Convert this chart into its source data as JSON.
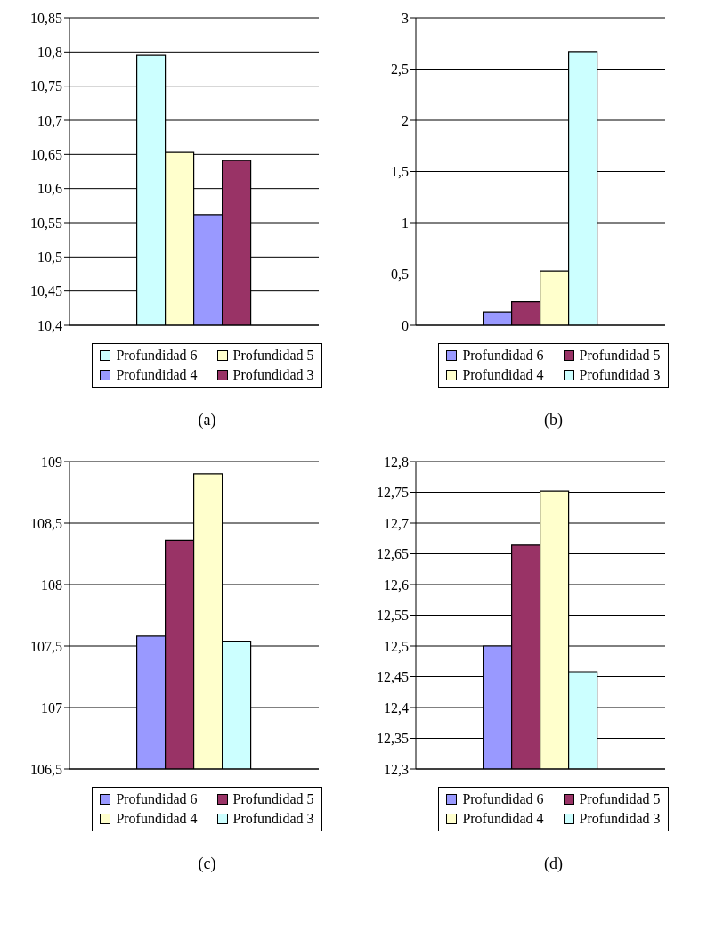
{
  "chart_data": [
    {
      "type": "bar",
      "categories": [
        null
      ],
      "series": [
        {
          "name": "Profundidad 6",
          "color": "#ccffff",
          "values": [
            10.795
          ]
        },
        {
          "name": "Profundidad 5",
          "color": "#ffffcc",
          "values": [
            10.653
          ]
        },
        {
          "name": "Profundidad 4",
          "color": "#9999ff",
          "values": [
            10.562
          ]
        },
        {
          "name": "Profundidad 3",
          "color": "#993366",
          "values": [
            10.641
          ]
        }
      ],
      "ylim": [
        10.4,
        10.85
      ],
      "yticks": [
        {
          "value": 10.4,
          "label": "10,4"
        },
        {
          "value": 10.45,
          "label": "10,45"
        },
        {
          "value": 10.5,
          "label": "10,5"
        },
        {
          "value": 10.55,
          "label": "10,55"
        },
        {
          "value": 10.6,
          "label": "10,6"
        },
        {
          "value": 10.65,
          "label": "10,65"
        },
        {
          "value": 10.7,
          "label": "10,7"
        },
        {
          "value": 10.75,
          "label": "10,75"
        },
        {
          "value": 10.8,
          "label": "10,8"
        },
        {
          "value": 10.85,
          "label": "10,85"
        }
      ],
      "grid": "y",
      "legend": "bottom",
      "annotations": [
        "(a)"
      ]
    },
    {
      "type": "bar",
      "categories": [
        null
      ],
      "series": [
        {
          "name": "Profundidad 6",
          "color": "#9999ff",
          "values": [
            0.13
          ]
        },
        {
          "name": "Profundidad 5",
          "color": "#993366",
          "values": [
            0.23
          ]
        },
        {
          "name": "Profundidad 4",
          "color": "#ffffcc",
          "values": [
            0.53
          ]
        },
        {
          "name": "Profundidad 3",
          "color": "#ccffff",
          "values": [
            2.67
          ]
        }
      ],
      "ylim": [
        0,
        3
      ],
      "yticks": [
        0,
        {
          "value": 0.5,
          "label": "0,5"
        },
        1,
        {
          "value": 1.5,
          "label": "1,5"
        },
        2,
        {
          "value": 2.5,
          "label": "2,5"
        },
        3
      ],
      "grid": "y",
      "legend": "bottom",
      "annotations": [
        "(b)"
      ]
    },
    {
      "type": "bar",
      "categories": [
        null
      ],
      "series": [
        {
          "name": "Profundidad 6",
          "color": "#9999ff",
          "values": [
            107.58
          ]
        },
        {
          "name": "Profundidad 5",
          "color": "#993366",
          "values": [
            108.36
          ]
        },
        {
          "name": "Profundidad 4",
          "color": "#ffffcc",
          "values": [
            108.9
          ]
        },
        {
          "name": "Profundidad 3",
          "color": "#ccffff",
          "values": [
            107.54
          ]
        }
      ],
      "ylim": [
        106.5,
        109
      ],
      "yticks": [
        {
          "value": 106.5,
          "label": "106,5"
        },
        107,
        {
          "value": 107.5,
          "label": "107,5"
        },
        108,
        {
          "value": 108.5,
          "label": "108,5"
        },
        109
      ],
      "grid": "y",
      "legend": "bottom",
      "annotations": [
        "(c)"
      ]
    },
    {
      "type": "bar",
      "categories": [
        null
      ],
      "series": [
        {
          "name": "Profundidad 6",
          "color": "#9999ff",
          "values": [
            12.5
          ]
        },
        {
          "name": "Profundidad 5",
          "color": "#993366",
          "values": [
            12.664
          ]
        },
        {
          "name": "Profundidad 4",
          "color": "#ffffcc",
          "values": [
            12.752
          ]
        },
        {
          "name": "Profundidad 3",
          "color": "#ccffff",
          "values": [
            12.458
          ]
        }
      ],
      "ylim": [
        12.3,
        12.8
      ],
      "yticks": [
        {
          "value": 12.3,
          "label": "12,3"
        },
        {
          "value": 12.35,
          "label": "12,35"
        },
        {
          "value": 12.4,
          "label": "12,4"
        },
        {
          "value": 12.45,
          "label": "12,45"
        },
        {
          "value": 12.5,
          "label": "12,5"
        },
        {
          "value": 12.55,
          "label": "12,55"
        },
        {
          "value": 12.6,
          "label": "12,6"
        },
        {
          "value": 12.65,
          "label": "12,65"
        },
        {
          "value": 12.7,
          "label": "12,7"
        },
        {
          "value": 12.75,
          "label": "12,75"
        },
        {
          "value": 12.8,
          "label": "12,8"
        }
      ],
      "grid": "y",
      "legend": "bottom",
      "annotations": [
        "(d)"
      ]
    }
  ]
}
